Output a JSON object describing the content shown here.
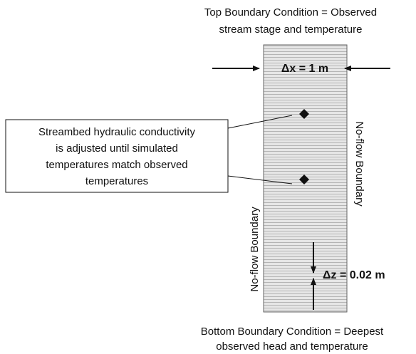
{
  "top_label": [
    "Top Boundary Condition = Observed",
    "stream stage and temperature"
  ],
  "dx_label": "Δx = 1 m",
  "callout": [
    "Streambed hydraulic conductivity",
    "is adjusted until simulated",
    "temperatures match observed",
    "temperatures"
  ],
  "right_boundary": "No-flow Boundary",
  "left_boundary": "No-flow Boundary",
  "dz_label": "Δz = 0.02 m",
  "bottom_label": [
    "Bottom Boundary Condition = Deepest",
    "observed head and temperature"
  ]
}
